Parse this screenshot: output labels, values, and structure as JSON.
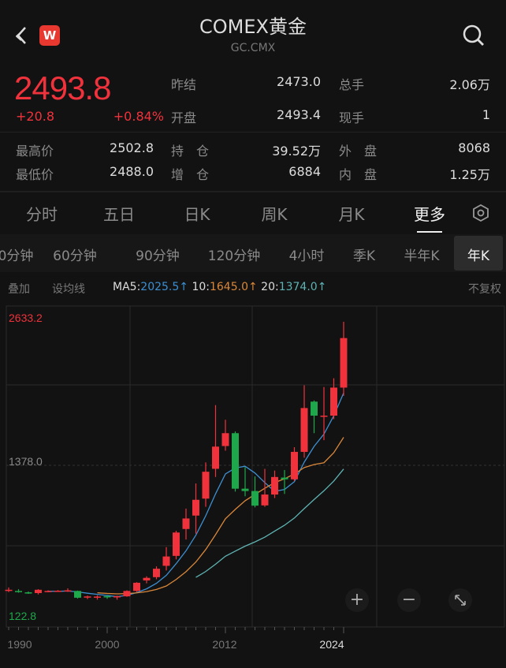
{
  "header": {
    "title": "COMEX黄金",
    "symbol": "GC.CMX",
    "logo_text": "W",
    "back_icon": "chevron-left-icon",
    "search_icon": "search-icon"
  },
  "quote": {
    "price": "2493.8",
    "change": "+20.8",
    "change_pct": "+0.84%",
    "fields": [
      {
        "label": "昨结",
        "value": "2473.0"
      },
      {
        "label": "总手",
        "value": "2.06万"
      },
      {
        "label": "开盘",
        "value": "2493.4"
      },
      {
        "label": "现手",
        "value": "1"
      },
      {
        "label": "最高价",
        "value": "2502.8"
      },
      {
        "label": "持　仓",
        "value": "39.52万"
      },
      {
        "label": "外　盘",
        "value": "8068"
      },
      {
        "label": "最低价",
        "value": "2488.0"
      },
      {
        "label": "增　仓",
        "value": "6884"
      },
      {
        "label": "内　盘",
        "value": "1.25万"
      }
    ]
  },
  "tabs": [
    "分时",
    "五日",
    "日K",
    "周K",
    "月K",
    "更多"
  ],
  "active_tab": "更多",
  "subtabs": [
    "0分钟",
    "60分钟",
    "90分钟",
    "120分钟",
    "4小时",
    "季K",
    "半年K",
    "年K"
  ],
  "active_subtab": "年K",
  "indicator_bar": {
    "overlay": "叠加",
    "set_ma": "设均线",
    "ma5_label": "MA5:",
    "ma5": "2025.5↑",
    "ma10_label": "10:",
    "ma10": "1645.0↑",
    "ma20_label": "20:",
    "ma20": "1374.0↑",
    "adjust": "不复权"
  },
  "colors": {
    "up": "#f0323c",
    "down": "#1fa84b",
    "ma5": "#3d8fd1",
    "ma10": "#d9873a",
    "ma20": "#5fb3b3"
  },
  "chart_data": {
    "type": "candlestick",
    "y_labels": {
      "max": "2633.2",
      "mid": "1378.0",
      "min": "122.8"
    },
    "ylim": [
      122.8,
      2633.2
    ],
    "x_ticks": [
      "1990",
      "2000",
      "2012",
      "2024"
    ],
    "x": [
      1990,
      1991,
      1992,
      1993,
      1994,
      1995,
      1996,
      1997,
      1998,
      1999,
      2000,
      2001,
      2002,
      2003,
      2004,
      2005,
      2006,
      2007,
      2008,
      2009,
      2010,
      2011,
      2012,
      2013,
      2014,
      2015,
      2016,
      2017,
      2018,
      2019,
      2020,
      2021,
      2022,
      2023,
      2024
    ],
    "ohlc": [
      [
        340,
        360,
        320,
        340
      ],
      [
        330,
        345,
        315,
        320
      ],
      [
        318,
        325,
        305,
        310
      ],
      [
        312,
        345,
        300,
        340
      ],
      [
        328,
        335,
        320,
        330
      ],
      [
        330,
        337,
        322,
        332
      ],
      [
        330,
        352,
        322,
        335
      ],
      [
        330,
        333,
        265,
        272
      ],
      [
        282,
        290,
        260,
        283
      ],
      [
        282,
        292,
        255,
        282
      ],
      [
        285,
        295,
        262,
        283
      ],
      [
        282,
        290,
        255,
        285
      ],
      [
        284,
        335,
        280,
        330
      ],
      [
        330,
        405,
        322,
        400
      ],
      [
        420,
        455,
        395,
        442
      ],
      [
        448,
        540,
        430,
        520
      ],
      [
        545,
        705,
        505,
        625
      ],
      [
        630,
        845,
        600,
        830
      ],
      [
        860,
        1035,
        770,
        950
      ],
      [
        975,
        1250,
        820,
        1110
      ],
      [
        1120,
        1430,
        1050,
        1350
      ],
      [
        1375,
        1920,
        1305,
        1565
      ],
      [
        1570,
        1795,
        1530,
        1680
      ],
      [
        1680,
        1695,
        1180,
        1205
      ],
      [
        1205,
        1390,
        1140,
        1185
      ],
      [
        1185,
        1310,
        1045,
        1060
      ],
      [
        1062,
        1375,
        1050,
        1155
      ],
      [
        1155,
        1360,
        1125,
        1305
      ],
      [
        1300,
        1365,
        1160,
        1285
      ],
      [
        1285,
        1560,
        1270,
        1520
      ],
      [
        1520,
        2090,
        1470,
        1895
      ],
      [
        1950,
        1960,
        1680,
        1830
      ],
      [
        1830,
        2075,
        1620,
        1830
      ],
      [
        1830,
        2150,
        1800,
        2070
      ],
      [
        2070,
        2633.2,
        2000,
        2493.8
      ]
    ]
  },
  "controls": {
    "zoom_in": "+",
    "zoom_out": "−",
    "fullscreen_icon": "expand-icon"
  }
}
